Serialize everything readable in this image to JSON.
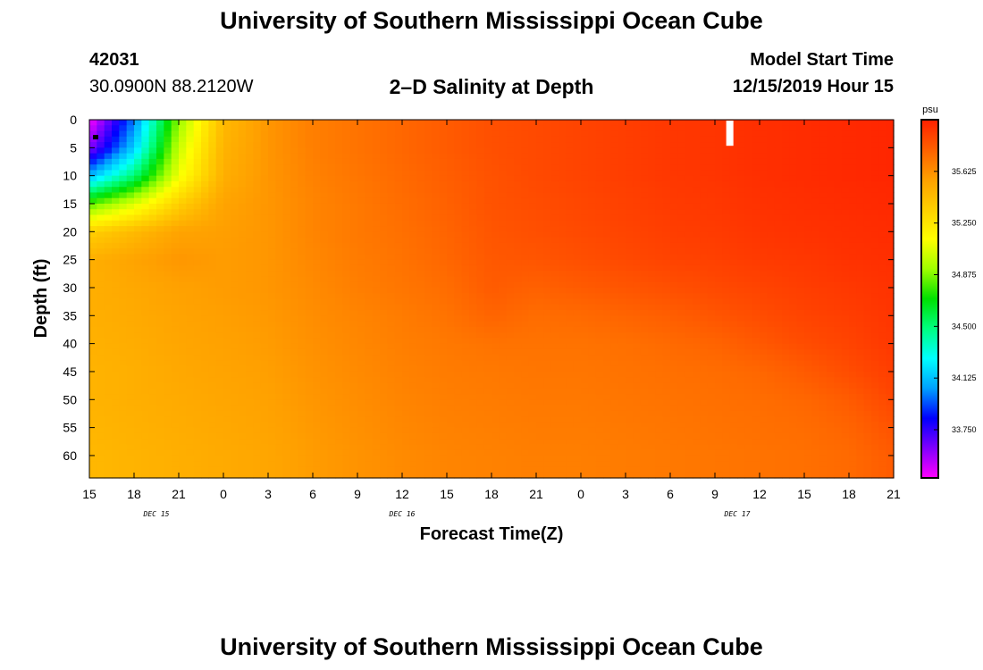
{
  "header": {
    "title": "University of Southern Mississippi Ocean Cube",
    "station_id": "42031",
    "station_location": "30.0900N 88.2120W",
    "plot_title": "2–D Salinity at Depth",
    "model_start_label": "Model Start Time",
    "model_start_value": "12/15/2019 Hour 15"
  },
  "footer": {
    "title": "University of Southern Mississippi Ocean Cube"
  },
  "chart_data": {
    "type": "heatmap",
    "title": "2–D Salinity at Depth",
    "xlabel": "Forecast Time(Z)",
    "ylabel": "Depth (ft)",
    "x_unit": "forecast hours from 12/15/2019 15Z",
    "xlim": [
      0,
      54
    ],
    "ylim": [
      0,
      64
    ],
    "y_inverted": true,
    "x_ticks": [
      {
        "hour": 0,
        "label": "15"
      },
      {
        "hour": 3,
        "label": "18"
      },
      {
        "hour": 6,
        "label": "21"
      },
      {
        "hour": 9,
        "label": "0"
      },
      {
        "hour": 12,
        "label": "3"
      },
      {
        "hour": 15,
        "label": "6"
      },
      {
        "hour": 18,
        "label": "9"
      },
      {
        "hour": 21,
        "label": "12"
      },
      {
        "hour": 24,
        "label": "15"
      },
      {
        "hour": 27,
        "label": "18"
      },
      {
        "hour": 30,
        "label": "21"
      },
      {
        "hour": 33,
        "label": "0"
      },
      {
        "hour": 36,
        "label": "3"
      },
      {
        "hour": 39,
        "label": "6"
      },
      {
        "hour": 42,
        "label": "9"
      },
      {
        "hour": 45,
        "label": "12"
      },
      {
        "hour": 48,
        "label": "15"
      },
      {
        "hour": 51,
        "label": "18"
      },
      {
        "hour": 54,
        "label": "21"
      }
    ],
    "day_labels": [
      {
        "hour": 4.5,
        "label": "DEC 15"
      },
      {
        "hour": 21,
        "label": "DEC 16"
      },
      {
        "hour": 43.5,
        "label": "DEC 17"
      }
    ],
    "y_ticks": [
      0,
      5,
      10,
      15,
      20,
      25,
      30,
      35,
      40,
      45,
      50,
      55,
      60
    ],
    "colorbar": {
      "unit": "psu",
      "ticks": [
        33.75,
        34.125,
        34.5,
        34.875,
        35.25,
        35.625
      ],
      "tick_labels": [
        "33.750",
        "34.125",
        "34.500",
        "34.875",
        "35.250",
        "35.625"
      ],
      "range": [
        33.4,
        36.0
      ],
      "colors": [
        "#ff00ff",
        "#8000ff",
        "#0000ff",
        "#00a0ff",
        "#00ffff",
        "#00ff80",
        "#00e000",
        "#a0ff00",
        "#ffff00",
        "#ffd000",
        "#ffa000",
        "#ff6000",
        "#ff2000"
      ]
    },
    "missing_value_marker": {
      "hour": 43,
      "depth_from": 0,
      "depth_to": 4.5
    },
    "salinity_grid": {
      "hours": [
        0,
        3,
        6,
        9,
        12,
        15,
        18,
        21,
        24,
        27,
        30,
        33,
        36,
        39,
        42,
        45,
        48,
        51,
        54
      ],
      "depths": [
        0,
        5,
        10,
        15,
        20,
        25,
        30,
        35,
        40,
        45,
        50,
        55,
        60,
        64
      ],
      "values": [
        [
          33.4,
          34.0,
          34.9,
          35.45,
          35.6,
          35.68,
          35.72,
          35.76,
          35.8,
          35.84,
          35.86,
          35.88,
          35.9,
          35.92,
          35.93,
          35.95,
          35.96,
          35.97,
          35.98
        ],
        [
          33.6,
          34.15,
          35.0,
          35.48,
          35.6,
          35.68,
          35.72,
          35.76,
          35.8,
          35.84,
          35.86,
          35.88,
          35.9,
          35.92,
          35.93,
          35.95,
          35.96,
          35.97,
          35.98
        ],
        [
          34.1,
          34.5,
          35.1,
          35.5,
          35.6,
          35.67,
          35.71,
          35.75,
          35.79,
          35.83,
          35.86,
          35.88,
          35.9,
          35.92,
          35.93,
          35.95,
          35.96,
          35.97,
          35.98
        ],
        [
          34.8,
          35.05,
          35.35,
          35.55,
          35.6,
          35.66,
          35.7,
          35.74,
          35.78,
          35.83,
          35.85,
          35.87,
          35.89,
          35.91,
          35.92,
          35.94,
          35.95,
          35.96,
          35.97
        ],
        [
          35.35,
          35.45,
          35.55,
          35.57,
          35.6,
          35.66,
          35.7,
          35.73,
          35.77,
          35.82,
          35.84,
          35.86,
          35.88,
          35.9,
          35.91,
          35.93,
          35.94,
          35.95,
          35.96
        ],
        [
          35.5,
          35.55,
          35.6,
          35.58,
          35.6,
          35.65,
          35.69,
          35.72,
          35.76,
          35.81,
          35.82,
          35.84,
          35.86,
          35.88,
          35.89,
          35.91,
          35.92,
          35.94,
          35.95
        ],
        [
          35.5,
          35.53,
          35.56,
          35.58,
          35.6,
          35.64,
          35.68,
          35.71,
          35.74,
          35.8,
          35.78,
          35.8,
          35.82,
          35.84,
          35.86,
          35.88,
          35.9,
          35.92,
          35.94
        ],
        [
          35.5,
          35.52,
          35.55,
          35.57,
          35.59,
          35.63,
          35.66,
          35.69,
          35.72,
          35.77,
          35.74,
          35.75,
          35.77,
          35.79,
          35.82,
          35.85,
          35.88,
          35.9,
          35.93
        ],
        [
          35.49,
          35.51,
          35.54,
          35.56,
          35.58,
          35.62,
          35.65,
          35.68,
          35.7,
          35.72,
          35.72,
          35.72,
          35.73,
          35.75,
          35.77,
          35.81,
          35.85,
          35.88,
          35.92
        ],
        [
          35.48,
          35.5,
          35.53,
          35.55,
          35.57,
          35.61,
          35.64,
          35.67,
          35.69,
          35.7,
          35.71,
          35.71,
          35.72,
          35.73,
          35.74,
          35.76,
          35.8,
          35.85,
          35.9
        ],
        [
          35.48,
          35.5,
          35.52,
          35.54,
          35.56,
          35.6,
          35.63,
          35.66,
          35.68,
          35.69,
          35.7,
          35.7,
          35.71,
          35.72,
          35.73,
          35.74,
          35.76,
          35.8,
          35.87
        ],
        [
          35.47,
          35.49,
          35.51,
          35.53,
          35.55,
          35.59,
          35.62,
          35.65,
          35.67,
          35.68,
          35.69,
          35.69,
          35.7,
          35.71,
          35.72,
          35.73,
          35.74,
          35.77,
          35.83
        ],
        [
          35.46,
          35.48,
          35.5,
          35.52,
          35.54,
          35.58,
          35.61,
          35.64,
          35.66,
          35.67,
          35.68,
          35.68,
          35.69,
          35.7,
          35.71,
          35.72,
          35.73,
          35.75,
          35.8
        ],
        [
          35.46,
          35.48,
          35.5,
          35.52,
          35.54,
          35.58,
          35.61,
          35.64,
          35.66,
          35.67,
          35.68,
          35.68,
          35.69,
          35.7,
          35.71,
          35.72,
          35.73,
          35.75,
          35.8
        ]
      ]
    }
  }
}
